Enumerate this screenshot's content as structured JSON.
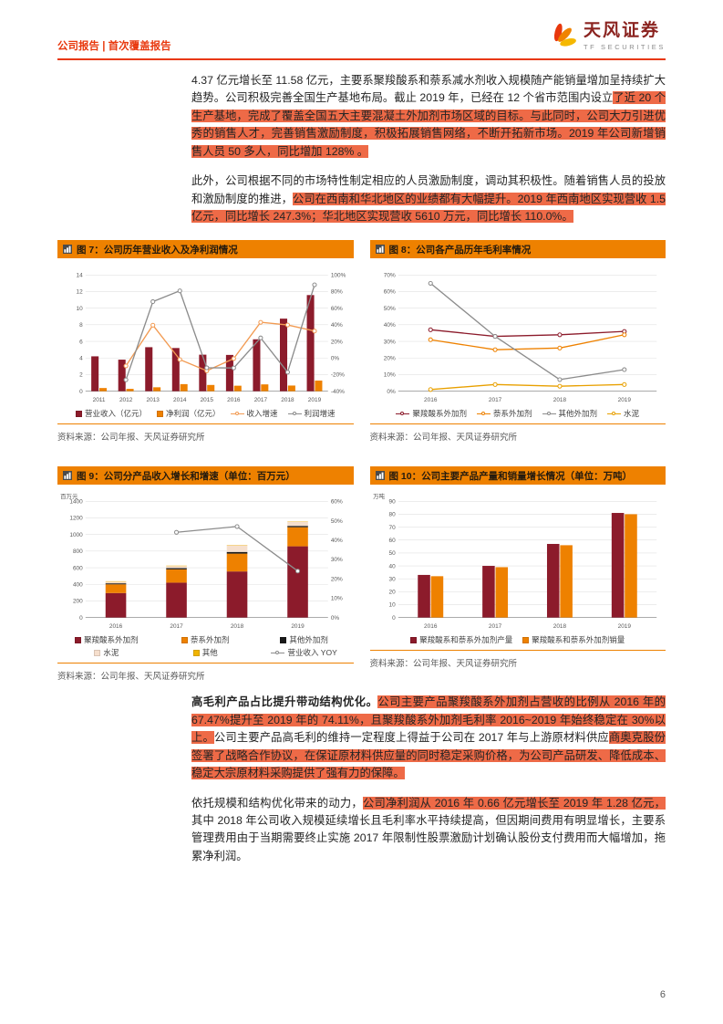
{
  "header": {
    "breadcrumb": "公司报告 | 首次覆盖报告",
    "logo_cn": "天风证券",
    "logo_en": "TF SECURITIES"
  },
  "page_number": "6",
  "colors": {
    "brand_red": "#E8380D",
    "figure_title_orange": "#EE8100",
    "text_highlight": "#EE6A47",
    "series_maroon": "#8C1B2B",
    "series_orange": "#EE8100",
    "series_gray": "#8C8C8C",
    "series_gold": "#E8A000"
  },
  "body": {
    "paragraphs": [
      {
        "segments": [
          {
            "t": "4.37 亿元增长至 11.58 亿元，主要系聚羧酸系和萘系减水剂收入规模随产能销量增加呈持续扩大趋势。"
          },
          {
            "t": "公司积极完善全国生产基地布局。截止 2019 年，已经在 12 个省市范围内设立"
          },
          {
            "t": "了近 20 个生产基地，完成了覆盖全国五大主要混凝土外加剂市场区域的目标。与此同时，公司大力引进优秀的销售人才，完善销售激励制度，积极拓展销售网络，不断开拓新市场。2019 年公司新增销售人员 50 多人，同比增加 128% 。",
            "hl": true
          }
        ]
      },
      {
        "segments": [
          {
            "t": "此外，公司根据不同的市场特性制定相应的人员激励制度，调动其积极性。随着销售人员的投放和激励制度的推进，"
          },
          {
            "t": "公司在西南和华北地区的业绩都有大幅提升。2019 年西南地区实现营收 1.5 亿元，同比增长 247.3%；华北地区实现营收 5610 万元，同比增长 110.0%。",
            "hl": true
          }
        ]
      },
      {
        "segments": [
          {
            "t": "高毛利产品占比提升带动结构优化。",
            "b": true
          },
          {
            "t": "公司主要产品聚羧酸系外加剂占营收的比例从 2016 年的 67.47%提升至 2019 年的 74.11%，且聚羧酸系外加剂毛利率 2016~2019 年始终稳定在 30%以上。",
            "hl": true
          },
          {
            "t": "公司主要产品高毛利的维持一定程度上得益于公司在 2017 年与上游原材料供应"
          },
          {
            "t": "商奥克股份签署了战略合作协议，在保证原材料供应量的同时稳定采购价格，为公司产品研发、降低成本、稳定大宗原材料采购提供了强有力的保障。",
            "hl": true
          }
        ]
      },
      {
        "segments": [
          {
            "t": "依托规模和结构优化带来的动力，"
          },
          {
            "t": "公司净利润从 2016 年 0.66 亿元增长至 2019 年 1.28 亿元，",
            "hl": true
          },
          {
            "t": "其中 2018 年公司收入规模延续增长且毛利率水平持续提高，但因期间费用有明显增长，主要系管理费用由于当期需要终止实施 2017 年限制性股票激励计划确认股份支付费用而大幅增加，拖累净利润。"
          }
        ]
      }
    ]
  },
  "chart_data": [
    {
      "id": "fig7",
      "type": "bar",
      "title": "图 7：公司历年营业收入及净利润情况",
      "source": "资料来源：公司年报、天风证券研究所",
      "categories": [
        "2011",
        "2012",
        "2013",
        "2014",
        "2015",
        "2016",
        "2017",
        "2018",
        "2019"
      ],
      "left_axis": {
        "min": 0,
        "max": 14,
        "step": 2,
        "suffix": ""
      },
      "right_axis": {
        "min": -40,
        "max": 100,
        "step": 20,
        "suffix": "%"
      },
      "bars": [
        {
          "name": "营业收入（亿元）",
          "color": "#8C1B2B",
          "values": [
            4.2,
            3.8,
            5.3,
            5.2,
            4.4,
            4.37,
            6.25,
            8.74,
            11.58
          ]
        },
        {
          "name": "净利润（亿元）",
          "color": "#EE8100",
          "values": [
            0.38,
            0.28,
            0.47,
            0.85,
            0.75,
            0.66,
            0.82,
            0.68,
            1.28
          ]
        }
      ],
      "lines": [
        {
          "name": "收入增速",
          "color": "#F29B53",
          "axis": "right",
          "values": [
            null,
            -9.5,
            39.5,
            -1.9,
            -15.4,
            -0.7,
            43.0,
            39.8,
            32.5
          ]
        },
        {
          "name": "利润增速",
          "color": "#8C8C8C",
          "axis": "right",
          "values": [
            null,
            -26.3,
            67.9,
            80.9,
            -11.8,
            -12.0,
            24.2,
            -17.1,
            88.2
          ]
        }
      ]
    },
    {
      "id": "fig8",
      "type": "line",
      "title": "图 8：公司各产品历年毛利率情况",
      "source": "资料来源：公司年报、天风证券研究所",
      "categories": [
        "2016",
        "2017",
        "2018",
        "2019"
      ],
      "left_axis": {
        "min": 0,
        "max": 70,
        "step": 10,
        "suffix": "%"
      },
      "lines": [
        {
          "name": "聚羧酸系外加剂",
          "color": "#8C1B2B",
          "values": [
            37,
            33,
            34,
            36
          ]
        },
        {
          "name": "萘系外加剂",
          "color": "#EE8100",
          "values": [
            31,
            25,
            26,
            34
          ]
        },
        {
          "name": "其他外加剂",
          "color": "#8C8C8C",
          "values": [
            65,
            33,
            7,
            13
          ]
        },
        {
          "name": "水泥",
          "color": "#E8A000",
          "values": [
            1,
            4,
            3,
            4
          ]
        }
      ]
    },
    {
      "id": "fig9",
      "type": "bar",
      "stacked": true,
      "title": "图 9：公司分产品收入增长和增速（单位：百万元）",
      "source": "资料来源：公司年报、天风证券研究所",
      "y_unit": "百万元",
      "categories": [
        "2016",
        "2017",
        "2018",
        "2019"
      ],
      "left_axis": {
        "min": 0,
        "max": 1400,
        "step": 200,
        "suffix": ""
      },
      "right_axis": {
        "min": 0,
        "max": 60,
        "step": 10,
        "suffix": "%"
      },
      "bars": [
        {
          "name": "聚羧酸系外加剂",
          "color": "#8C1B2B",
          "values": [
            295,
            420,
            555,
            858
          ]
        },
        {
          "name": "萘系外加剂",
          "color": "#EE8100",
          "values": [
            105,
            160,
            215,
            230
          ]
        },
        {
          "name": "其他外加剂",
          "color": "#1A1A1A",
          "values": [
            12,
            15,
            20,
            16
          ]
        },
        {
          "name": "水泥",
          "color": "#F6DFCD",
          "values": [
            20,
            25,
            80,
            50
          ]
        },
        {
          "name": "其他",
          "color": "#F0B400",
          "values": [
            5,
            5,
            4,
            4
          ]
        }
      ],
      "lines": [
        {
          "name": "营业收入 YOY",
          "color": "#8C8C8C",
          "axis": "right",
          "values": [
            null,
            44,
            47,
            24
          ]
        }
      ]
    },
    {
      "id": "fig10",
      "type": "bar",
      "title": "图 10：公司主要产品产量和销量增长情况（单位：万吨）",
      "source": "资料来源：公司年报、天风证券研究所",
      "y_unit": "万吨",
      "categories": [
        "2016",
        "2017",
        "2018",
        "2019"
      ],
      "left_axis": {
        "min": 0,
        "max": 90,
        "step": 10,
        "suffix": ""
      },
      "bars": [
        {
          "name": "聚羧酸系和萘系外加剂产量",
          "color": "#8C1B2B",
          "values": [
            33,
            40,
            57,
            81
          ]
        },
        {
          "name": "聚羧酸系和萘系外加剂销量",
          "color": "#EE8100",
          "values": [
            32,
            39,
            56,
            80
          ]
        }
      ]
    }
  ]
}
